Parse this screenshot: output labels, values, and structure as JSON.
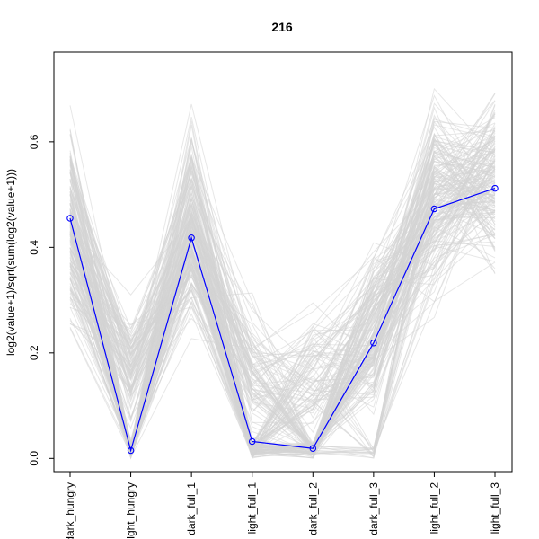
{
  "chart_data": {
    "type": "line",
    "title": "216",
    "xlabel": "",
    "ylabel": "log2(value+1)/sqrt(sum(log2(value+1)))",
    "categories": [
      "dark_hungry",
      "light_hungry",
      "dark_full_1",
      "light_full_1",
      "dark_full_2",
      "dark_full_3",
      "light_full_2",
      "light_full_3"
    ],
    "ylim": [
      -0.025,
      0.77
    ],
    "yticks": [
      0.0,
      0.2,
      0.4,
      0.6
    ],
    "ytick_labels": [
      "0.0",
      "0.2",
      "0.4",
      "0.6"
    ],
    "grid": false,
    "legend": "none",
    "colors": {
      "highlight": "#0000ff",
      "background_lines": "#d3d3d3",
      "axis": "#000000"
    },
    "highlight_series": {
      "values": [
        0.455,
        0.015,
        0.418,
        0.032,
        0.019,
        0.219,
        0.473,
        0.512
      ]
    },
    "background_series_envelope": {
      "description_values": "each of the 8 categories spans roughly these min/max values across many gray profiles",
      "min": [
        0.2,
        0.0,
        0.18,
        0.0,
        0.0,
        0.0,
        0.24,
        0.31
      ],
      "max": [
        0.69,
        0.33,
        0.7,
        0.33,
        0.33,
        0.49,
        0.75,
        0.75
      ]
    }
  }
}
